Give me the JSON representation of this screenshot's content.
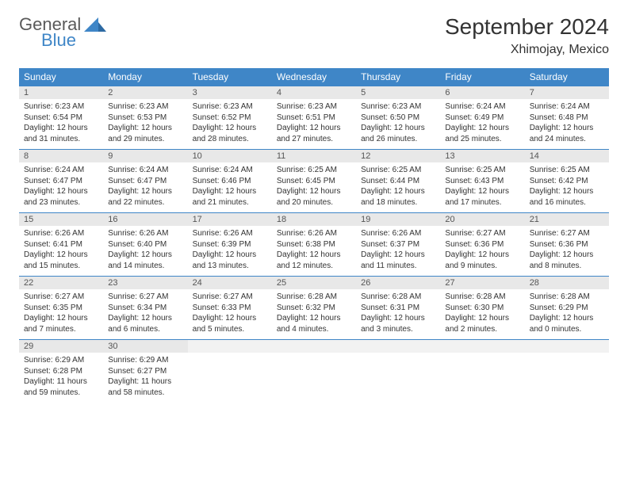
{
  "brand": {
    "word1": "General",
    "word2": "Blue"
  },
  "title": "September 2024",
  "location": "Xhimojay, Mexico",
  "colors": {
    "header_bg": "#3f86c7",
    "header_text": "#ffffff",
    "daynum_bg": "#e8e8e8",
    "border": "#3f86c7",
    "text": "#333333",
    "logo_gray": "#5a5a5a",
    "logo_blue": "#3f86c7"
  },
  "weekdays": [
    "Sunday",
    "Monday",
    "Tuesday",
    "Wednesday",
    "Thursday",
    "Friday",
    "Saturday"
  ],
  "weeks": [
    [
      {
        "n": "1",
        "sr": "Sunrise: 6:23 AM",
        "ss": "Sunset: 6:54 PM",
        "dl1": "Daylight: 12 hours",
        "dl2": "and 31 minutes."
      },
      {
        "n": "2",
        "sr": "Sunrise: 6:23 AM",
        "ss": "Sunset: 6:53 PM",
        "dl1": "Daylight: 12 hours",
        "dl2": "and 29 minutes."
      },
      {
        "n": "3",
        "sr": "Sunrise: 6:23 AM",
        "ss": "Sunset: 6:52 PM",
        "dl1": "Daylight: 12 hours",
        "dl2": "and 28 minutes."
      },
      {
        "n": "4",
        "sr": "Sunrise: 6:23 AM",
        "ss": "Sunset: 6:51 PM",
        "dl1": "Daylight: 12 hours",
        "dl2": "and 27 minutes."
      },
      {
        "n": "5",
        "sr": "Sunrise: 6:23 AM",
        "ss": "Sunset: 6:50 PM",
        "dl1": "Daylight: 12 hours",
        "dl2": "and 26 minutes."
      },
      {
        "n": "6",
        "sr": "Sunrise: 6:24 AM",
        "ss": "Sunset: 6:49 PM",
        "dl1": "Daylight: 12 hours",
        "dl2": "and 25 minutes."
      },
      {
        "n": "7",
        "sr": "Sunrise: 6:24 AM",
        "ss": "Sunset: 6:48 PM",
        "dl1": "Daylight: 12 hours",
        "dl2": "and 24 minutes."
      }
    ],
    [
      {
        "n": "8",
        "sr": "Sunrise: 6:24 AM",
        "ss": "Sunset: 6:47 PM",
        "dl1": "Daylight: 12 hours",
        "dl2": "and 23 minutes."
      },
      {
        "n": "9",
        "sr": "Sunrise: 6:24 AM",
        "ss": "Sunset: 6:47 PM",
        "dl1": "Daylight: 12 hours",
        "dl2": "and 22 minutes."
      },
      {
        "n": "10",
        "sr": "Sunrise: 6:24 AM",
        "ss": "Sunset: 6:46 PM",
        "dl1": "Daylight: 12 hours",
        "dl2": "and 21 minutes."
      },
      {
        "n": "11",
        "sr": "Sunrise: 6:25 AM",
        "ss": "Sunset: 6:45 PM",
        "dl1": "Daylight: 12 hours",
        "dl2": "and 20 minutes."
      },
      {
        "n": "12",
        "sr": "Sunrise: 6:25 AM",
        "ss": "Sunset: 6:44 PM",
        "dl1": "Daylight: 12 hours",
        "dl2": "and 18 minutes."
      },
      {
        "n": "13",
        "sr": "Sunrise: 6:25 AM",
        "ss": "Sunset: 6:43 PM",
        "dl1": "Daylight: 12 hours",
        "dl2": "and 17 minutes."
      },
      {
        "n": "14",
        "sr": "Sunrise: 6:25 AM",
        "ss": "Sunset: 6:42 PM",
        "dl1": "Daylight: 12 hours",
        "dl2": "and 16 minutes."
      }
    ],
    [
      {
        "n": "15",
        "sr": "Sunrise: 6:26 AM",
        "ss": "Sunset: 6:41 PM",
        "dl1": "Daylight: 12 hours",
        "dl2": "and 15 minutes."
      },
      {
        "n": "16",
        "sr": "Sunrise: 6:26 AM",
        "ss": "Sunset: 6:40 PM",
        "dl1": "Daylight: 12 hours",
        "dl2": "and 14 minutes."
      },
      {
        "n": "17",
        "sr": "Sunrise: 6:26 AM",
        "ss": "Sunset: 6:39 PM",
        "dl1": "Daylight: 12 hours",
        "dl2": "and 13 minutes."
      },
      {
        "n": "18",
        "sr": "Sunrise: 6:26 AM",
        "ss": "Sunset: 6:38 PM",
        "dl1": "Daylight: 12 hours",
        "dl2": "and 12 minutes."
      },
      {
        "n": "19",
        "sr": "Sunrise: 6:26 AM",
        "ss": "Sunset: 6:37 PM",
        "dl1": "Daylight: 12 hours",
        "dl2": "and 11 minutes."
      },
      {
        "n": "20",
        "sr": "Sunrise: 6:27 AM",
        "ss": "Sunset: 6:36 PM",
        "dl1": "Daylight: 12 hours",
        "dl2": "and 9 minutes."
      },
      {
        "n": "21",
        "sr": "Sunrise: 6:27 AM",
        "ss": "Sunset: 6:36 PM",
        "dl1": "Daylight: 12 hours",
        "dl2": "and 8 minutes."
      }
    ],
    [
      {
        "n": "22",
        "sr": "Sunrise: 6:27 AM",
        "ss": "Sunset: 6:35 PM",
        "dl1": "Daylight: 12 hours",
        "dl2": "and 7 minutes."
      },
      {
        "n": "23",
        "sr": "Sunrise: 6:27 AM",
        "ss": "Sunset: 6:34 PM",
        "dl1": "Daylight: 12 hours",
        "dl2": "and 6 minutes."
      },
      {
        "n": "24",
        "sr": "Sunrise: 6:27 AM",
        "ss": "Sunset: 6:33 PM",
        "dl1": "Daylight: 12 hours",
        "dl2": "and 5 minutes."
      },
      {
        "n": "25",
        "sr": "Sunrise: 6:28 AM",
        "ss": "Sunset: 6:32 PM",
        "dl1": "Daylight: 12 hours",
        "dl2": "and 4 minutes."
      },
      {
        "n": "26",
        "sr": "Sunrise: 6:28 AM",
        "ss": "Sunset: 6:31 PM",
        "dl1": "Daylight: 12 hours",
        "dl2": "and 3 minutes."
      },
      {
        "n": "27",
        "sr": "Sunrise: 6:28 AM",
        "ss": "Sunset: 6:30 PM",
        "dl1": "Daylight: 12 hours",
        "dl2": "and 2 minutes."
      },
      {
        "n": "28",
        "sr": "Sunrise: 6:28 AM",
        "ss": "Sunset: 6:29 PM",
        "dl1": "Daylight: 12 hours",
        "dl2": "and 0 minutes."
      }
    ],
    [
      {
        "n": "29",
        "sr": "Sunrise: 6:29 AM",
        "ss": "Sunset: 6:28 PM",
        "dl1": "Daylight: 11 hours",
        "dl2": "and 59 minutes."
      },
      {
        "n": "30",
        "sr": "Sunrise: 6:29 AM",
        "ss": "Sunset: 6:27 PM",
        "dl1": "Daylight: 11 hours",
        "dl2": "and 58 minutes."
      },
      null,
      null,
      null,
      null,
      null
    ]
  ]
}
